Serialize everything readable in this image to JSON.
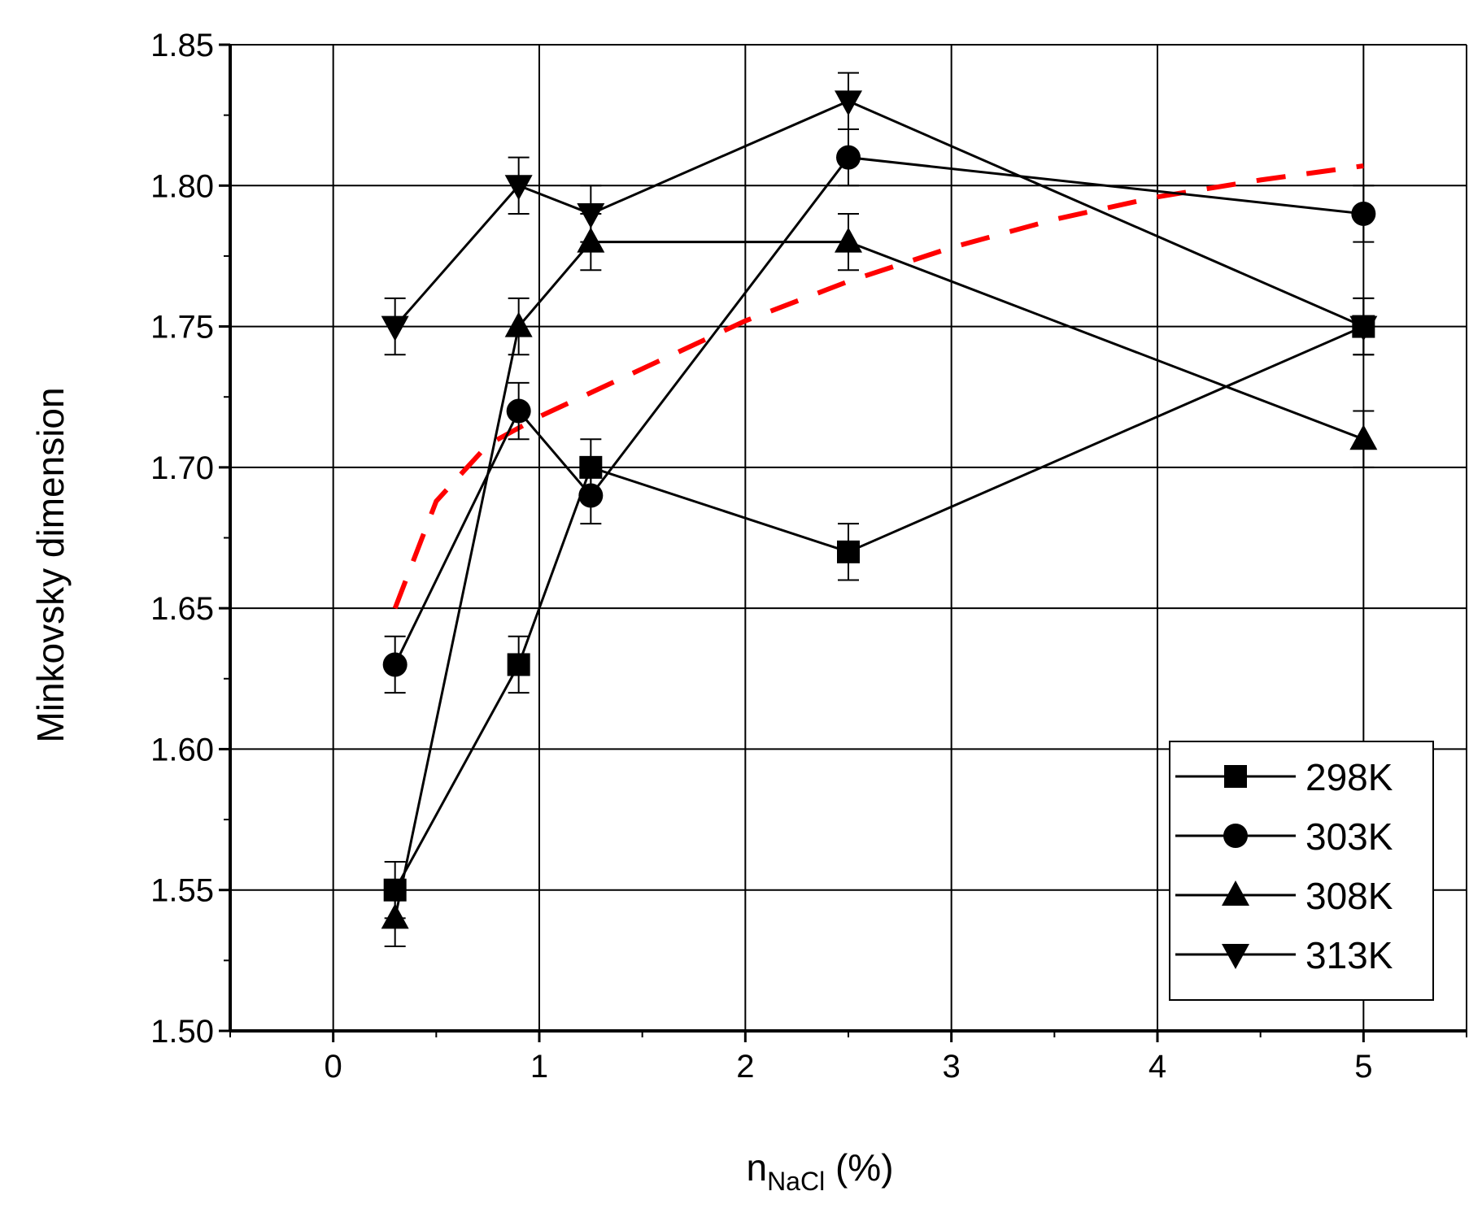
{
  "chart_data": {
    "type": "line",
    "title": "",
    "xlabel_main": "n",
    "xlabel_sub": "NaCl",
    "xlabel_suffix": " (%)",
    "ylabel": "Minkovsky dimension",
    "xlim": [
      -0.5,
      5.5
    ],
    "ylim": [
      1.5,
      1.85
    ],
    "xticks": [
      0,
      1,
      2,
      3,
      4,
      5
    ],
    "xtick_labels": [
      "0",
      "1",
      "2",
      "3",
      "4",
      "5"
    ],
    "yticks": [
      1.5,
      1.55,
      1.6,
      1.65,
      1.7,
      1.75,
      1.8,
      1.85
    ],
    "ytick_labels": [
      "1.50",
      "1.55",
      "1.60",
      "1.65",
      "1.70",
      "1.75",
      "1.80",
      "1.85"
    ],
    "grid": true,
    "legend_position": "bottom-right",
    "series": [
      {
        "name": "298K",
        "marker": "square",
        "x": [
          0.3,
          0.9,
          1.25,
          2.5,
          5.0
        ],
        "y": [
          1.55,
          1.63,
          1.7,
          1.67,
          1.75
        ],
        "err": [
          0.01,
          0.01,
          0.01,
          0.01,
          0.01
        ]
      },
      {
        "name": "303K",
        "marker": "circle",
        "x": [
          0.3,
          0.9,
          1.25,
          2.5,
          5.0
        ],
        "y": [
          1.63,
          1.72,
          1.69,
          1.81,
          1.79
        ],
        "err": [
          0.01,
          0.01,
          0.01,
          0.01,
          0.01
        ]
      },
      {
        "name": "308K",
        "marker": "triangle-up",
        "x": [
          0.3,
          0.9,
          1.25,
          2.5,
          5.0
        ],
        "y": [
          1.54,
          1.75,
          1.78,
          1.78,
          1.71
        ],
        "err": [
          0.01,
          0.01,
          0.01,
          0.01,
          0.01
        ]
      },
      {
        "name": "313K",
        "marker": "triangle-down",
        "x": [
          0.3,
          0.9,
          1.25,
          2.5,
          5.0
        ],
        "y": [
          1.75,
          1.8,
          1.79,
          1.83,
          1.75
        ],
        "err": [
          0.01,
          0.01,
          0.01,
          0.01,
          0.01
        ]
      }
    ],
    "trend_line": {
      "style": "dashed",
      "color": "#ff0000",
      "x": [
        0.3,
        0.5,
        0.75,
        1.0,
        1.5,
        2.0,
        2.5,
        3.0,
        3.5,
        4.0,
        4.5,
        5.0
      ],
      "y": [
        1.65,
        1.688,
        1.708,
        1.718,
        1.735,
        1.752,
        1.766,
        1.778,
        1.788,
        1.796,
        1.802,
        1.807
      ]
    },
    "colors": {
      "series": "#000000",
      "grid": "#000000",
      "trend": "#ff0000"
    }
  }
}
